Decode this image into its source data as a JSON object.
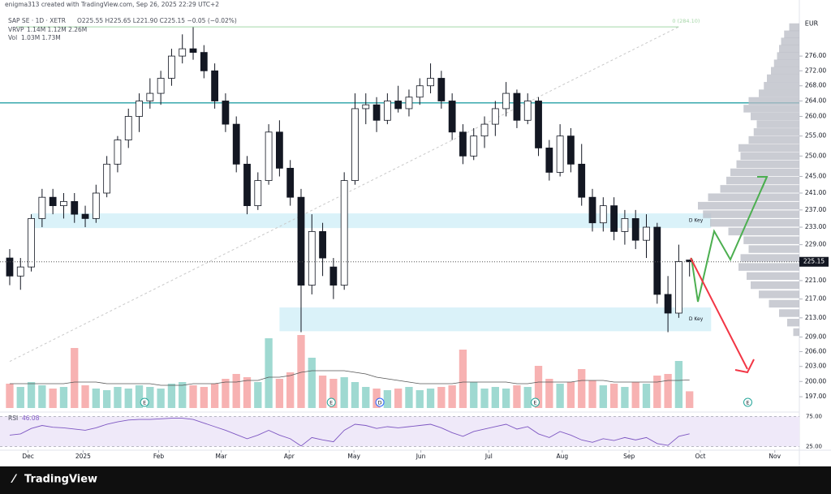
{
  "header": {
    "attribution": "enigma313 created with TradingView.com, Sep 26, 2025 22:29 UTC+2",
    "symbol": "SAP SE · 1D · XETR",
    "ohlc": "O225.55 H225.65 L221.90 C225.15 −0.05 (−0.02%)",
    "vrvp_name": "VRVP",
    "vrvp_values": "1.14M 1.12M 2.26M",
    "vol_name": "Vol",
    "vol_values": "1.03M 1.73M"
  },
  "chart_data": {
    "type": "candlestick",
    "currency": "EUR",
    "log_scale": true,
    "ylim": [
      194.5,
      287.1
    ],
    "yticks": [
      {
        "value": 276,
        "label": "276.00"
      },
      {
        "value": 272,
        "label": "272.00"
      },
      {
        "value": 268,
        "label": "268.00"
      },
      {
        "value": 264,
        "label": "264.00"
      },
      {
        "value": 260,
        "label": "260.00"
      },
      {
        "value": 255,
        "label": "255.00"
      },
      {
        "value": 250,
        "label": "250.00"
      },
      {
        "value": 245,
        "label": "245.00"
      },
      {
        "value": 241,
        "label": "241.00"
      },
      {
        "value": 237,
        "label": "237.00"
      },
      {
        "value": 233,
        "label": "233.00"
      },
      {
        "value": 229,
        "label": "229.00"
      },
      {
        "value": 221,
        "label": "221.00"
      },
      {
        "value": 217,
        "label": "217.00"
      },
      {
        "value": 213,
        "label": "213.00"
      },
      {
        "value": 209,
        "label": "209.00"
      },
      {
        "value": 206,
        "label": "206.00"
      },
      {
        "value": 203,
        "label": "203.00"
      },
      {
        "value": 200,
        "label": "200.00"
      },
      {
        "value": 197,
        "label": "197.00"
      }
    ],
    "xlim": [
      -0.9,
      72.8
    ],
    "xticks": [
      {
        "value": 1.7,
        "label": "Dec"
      },
      {
        "value": 6.8,
        "label": "2025"
      },
      {
        "value": 13.8,
        "label": "Feb"
      },
      {
        "value": 19.6,
        "label": "Mar"
      },
      {
        "value": 25.9,
        "label": "Apr"
      },
      {
        "value": 31.9,
        "label": "May"
      },
      {
        "value": 38.1,
        "label": "Jun"
      },
      {
        "value": 44.4,
        "label": "Jul"
      },
      {
        "value": 51.2,
        "label": "Aug"
      },
      {
        "value": 57.4,
        "label": "Sep"
      },
      {
        "value": 64.0,
        "label": "Oct"
      },
      {
        "value": 70.9,
        "label": "Nov"
      }
    ],
    "colors": {
      "up_fill": "#ffffff",
      "down_fill": "#131722",
      "outline": "#131722",
      "vol_up": "#9fd9d1",
      "vol_down": "#f7b2b2",
      "hline": "#26a0a6",
      "zone": "#d4f0f8",
      "fib": "#c9c9c9",
      "top_line": "#a5d6a7",
      "rsi": "#7e57c2",
      "rsi_band": "#efe9f9",
      "vrvp": "#b8bbc4"
    },
    "candles": [
      [
        226,
        228,
        220,
        222
      ],
      [
        222,
        226,
        219,
        224
      ],
      [
        224,
        236,
        223,
        235
      ],
      [
        235,
        242,
        233,
        240
      ],
      [
        240,
        242,
        236,
        238
      ],
      [
        238,
        241,
        235,
        239
      ],
      [
        239,
        241,
        234,
        236
      ],
      [
        236,
        238,
        233,
        235
      ],
      [
        235,
        243,
        234,
        241
      ],
      [
        241,
        250,
        240,
        248
      ],
      [
        248,
        255,
        246,
        254
      ],
      [
        254,
        262,
        252,
        260
      ],
      [
        260,
        266,
        256,
        264
      ],
      [
        264,
        270,
        262,
        266
      ],
      [
        266,
        272,
        263,
        270
      ],
      [
        270,
        278,
        268,
        276
      ],
      [
        276,
        282,
        274,
        278
      ],
      [
        278,
        284,
        275,
        277
      ],
      [
        277,
        279,
        270,
        272
      ],
      [
        272,
        274,
        262,
        264
      ],
      [
        264,
        266,
        256,
        258
      ],
      [
        258,
        260,
        246,
        248
      ],
      [
        248,
        250,
        236,
        238
      ],
      [
        238,
        246,
        237,
        244
      ],
      [
        244,
        258,
        243,
        256
      ],
      [
        256,
        259,
        245,
        247
      ],
      [
        247,
        249,
        238,
        240
      ],
      [
        240,
        242,
        210,
        220
      ],
      [
        220,
        236,
        218,
        232
      ],
      [
        232,
        234,
        222,
        226
      ],
      [
        224,
        226,
        217,
        220
      ],
      [
        220,
        246,
        219,
        244
      ],
      [
        244,
        266,
        243,
        262
      ],
      [
        262,
        266,
        258,
        263
      ],
      [
        263,
        265,
        256,
        259
      ],
      [
        259,
        266,
        258,
        264
      ],
      [
        264,
        268,
        261,
        262
      ],
      [
        262,
        267,
        260,
        265
      ],
      [
        265,
        270,
        263,
        268
      ],
      [
        268,
        274,
        266,
        270
      ],
      [
        270,
        272,
        262,
        264
      ],
      [
        264,
        266,
        254,
        256
      ],
      [
        256,
        258,
        248,
        250
      ],
      [
        250,
        257,
        249,
        255
      ],
      [
        255,
        260,
        252,
        258
      ],
      [
        258,
        264,
        255,
        262
      ],
      [
        262,
        269,
        260,
        266
      ],
      [
        266,
        267,
        257,
        259
      ],
      [
        259,
        266,
        258,
        264
      ],
      [
        264,
        265,
        250,
        252
      ],
      [
        252,
        254,
        244,
        246
      ],
      [
        246,
        258,
        245,
        255
      ],
      [
        255,
        257,
        246,
        248
      ],
      [
        248,
        253,
        238,
        240
      ],
      [
        240,
        242,
        232,
        234
      ],
      [
        234,
        240,
        232,
        238
      ],
      [
        238,
        240,
        230,
        232
      ],
      [
        232,
        237,
        229,
        235
      ],
      [
        235,
        237,
        228,
        230
      ],
      [
        230,
        236,
        226,
        233
      ],
      [
        233,
        234,
        216,
        218
      ],
      [
        218,
        222,
        210,
        214
      ],
      [
        214,
        229,
        213,
        225.2
      ],
      [
        225.55,
        225.65,
        221.9,
        225.15
      ]
    ],
    "volume": {
      "ylim": [
        0,
        5.0
      ],
      "values": [
        1.5,
        1.3,
        1.6,
        1.4,
        1.2,
        1.3,
        3.7,
        1.4,
        1.2,
        1.1,
        1.3,
        1.2,
        1.4,
        1.3,
        1.2,
        1.5,
        1.6,
        1.4,
        1.3,
        1.5,
        1.8,
        2.1,
        1.9,
        1.6,
        4.3,
        1.8,
        2.2,
        4.5,
        3.1,
        2.0,
        1.8,
        1.9,
        1.6,
        1.3,
        1.2,
        1.1,
        1.2,
        1.3,
        1.1,
        1.2,
        1.3,
        1.4,
        3.6,
        1.6,
        1.2,
        1.3,
        1.2,
        1.4,
        1.3,
        2.6,
        1.8,
        1.5,
        1.6,
        2.4,
        1.7,
        1.4,
        1.5,
        1.3,
        1.6,
        1.5,
        2.0,
        2.1,
        2.9,
        1.03
      ],
      "ma": [
        1.5,
        1.5,
        1.5,
        1.5,
        1.5,
        1.5,
        1.6,
        1.6,
        1.6,
        1.5,
        1.5,
        1.5,
        1.5,
        1.5,
        1.4,
        1.4,
        1.4,
        1.5,
        1.5,
        1.5,
        1.6,
        1.6,
        1.7,
        1.7,
        1.9,
        1.9,
        2.0,
        2.2,
        2.3,
        2.3,
        2.3,
        2.3,
        2.2,
        2.1,
        1.9,
        1.8,
        1.7,
        1.6,
        1.5,
        1.5,
        1.5,
        1.5,
        1.6,
        1.6,
        1.6,
        1.6,
        1.6,
        1.5,
        1.5,
        1.6,
        1.6,
        1.6,
        1.6,
        1.7,
        1.7,
        1.7,
        1.6,
        1.6,
        1.6,
        1.6,
        1.6,
        1.7,
        1.7,
        1.73
      ]
    },
    "annotations": {
      "hline": 263.5,
      "zones": [
        {
          "low": 232.8,
          "high": 236.2,
          "start": 2,
          "end": 65,
          "label": "D Key"
        },
        {
          "low": 210.2,
          "high": 215.2,
          "start": 25,
          "end": 65,
          "label": "D Key"
        }
      ],
      "fib": {
        "label": "0 (284.10)",
        "from": [
          0,
          204
        ],
        "to": [
          62,
          284.1
        ]
      }
    },
    "events": [
      {
        "label": "E",
        "x": 12.5
      },
      {
        "label": "E",
        "x": 29.8
      },
      {
        "label": "D",
        "x": 34.3
      },
      {
        "label": "E",
        "x": 48.7
      },
      {
        "label": "E",
        "x": 68.4
      }
    ],
    "vrvp": {
      "prices": [
        210,
        212,
        214,
        216,
        218,
        220,
        222,
        224,
        226,
        228,
        230,
        232,
        234,
        236,
        238,
        240,
        242,
        244,
        246,
        248,
        250,
        252,
        254,
        256,
        258,
        260,
        262,
        264,
        266,
        268,
        270,
        272,
        274,
        276,
        278,
        280,
        282,
        284
      ],
      "values": [
        6,
        12,
        20,
        30,
        40,
        48,
        52,
        60,
        58,
        50,
        55,
        70,
        88,
        95,
        100,
        90,
        78,
        72,
        68,
        62,
        58,
        60,
        50,
        45,
        42,
        48,
        55,
        50,
        40,
        35,
        32,
        28,
        25,
        22,
        20,
        18,
        15,
        10
      ]
    },
    "rsi": {
      "name": "RSI",
      "label": "46.08",
      "ylim": [
        19,
        79.5
      ],
      "yticks": [
        {
          "value": 75,
          "label": "75.00"
        },
        {
          "value": 25,
          "label": "25.00"
        }
      ],
      "values": [
        44,
        46,
        55,
        60,
        57,
        56,
        54,
        52,
        56,
        62,
        66,
        69,
        70,
        70,
        71,
        72,
        72,
        70,
        64,
        58,
        52,
        45,
        38,
        44,
        52,
        44,
        38,
        26,
        40,
        36,
        33,
        52,
        62,
        60,
        55,
        58,
        56,
        58,
        60,
        62,
        56,
        48,
        42,
        50,
        54,
        58,
        62,
        54,
        58,
        46,
        40,
        50,
        44,
        36,
        32,
        38,
        35,
        40,
        36,
        40,
        30,
        27,
        42,
        46.08
      ]
    }
  },
  "footer": {
    "brand": "TradingView"
  }
}
